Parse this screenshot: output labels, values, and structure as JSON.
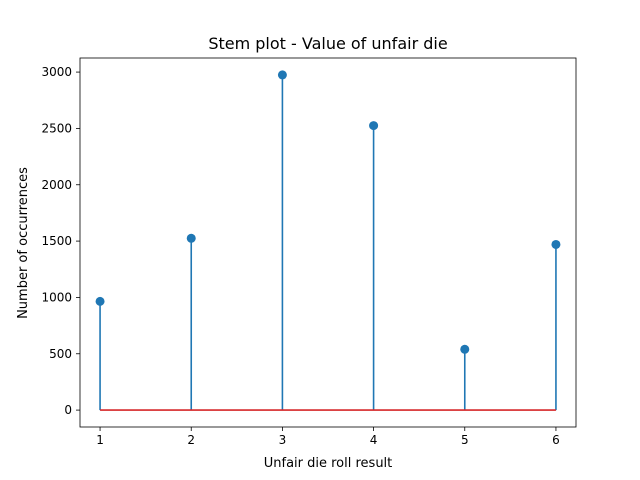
{
  "chart_data": {
    "type": "stem",
    "title": "Stem plot - Value of unfair die",
    "xlabel": "Unfair die roll result",
    "ylabel": "Number of occurrences",
    "x": [
      1,
      2,
      3,
      4,
      5,
      6
    ],
    "values": [
      965,
      1525,
      2975,
      2525,
      540,
      1470
    ],
    "xlim": [
      0.78,
      6.22
    ],
    "ylim": [
      -150,
      3125
    ],
    "xticks": [
      "1",
      "2",
      "3",
      "4",
      "5",
      "6"
    ],
    "yticks": [
      "0",
      "500",
      "1000",
      "1500",
      "2000",
      "2500",
      "3000"
    ],
    "grid": false,
    "colors": {
      "stem": "#1f77b4",
      "marker": "#1f77b4",
      "baseline": "#d62728"
    }
  }
}
